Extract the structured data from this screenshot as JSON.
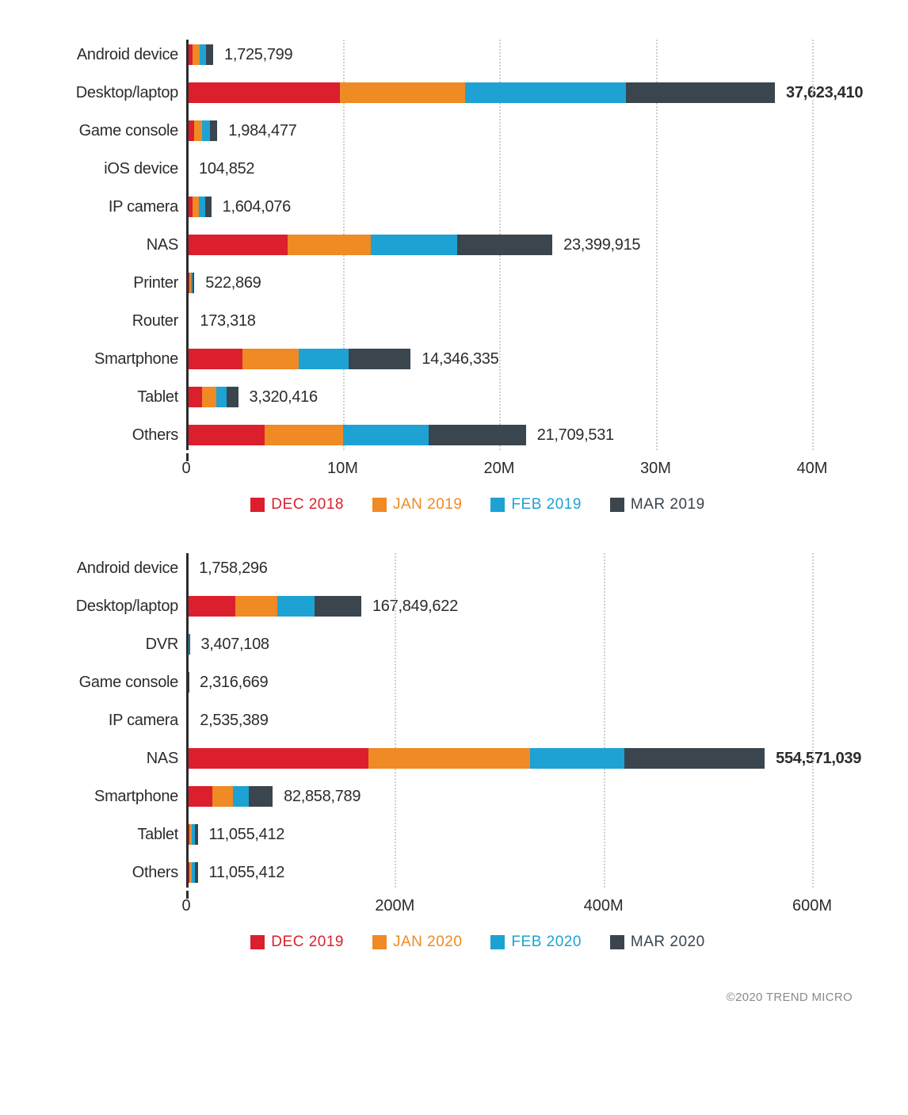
{
  "colors": {
    "dec": "#db1f2d",
    "jan": "#ef8a24",
    "feb": "#1da2d3",
    "mar": "#3a454e",
    "text": "#2c2c2c",
    "grid": "#cfcfcf",
    "footer": "#8a8a8a"
  },
  "chart1": {
    "type": "stacked-bar",
    "x_max": 40000000,
    "categories": [
      {
        "label": "Android device",
        "total": 1725799,
        "total_label": "1,725,799",
        "bold": false,
        "segments": [
          430000,
          430000,
          430000,
          435799
        ]
      },
      {
        "label": "Desktop/laptop",
        "total": 37623410,
        "total_label": "37,623,410",
        "bold": true,
        "segments": [
          9800000,
          8000000,
          10300000,
          9523410
        ]
      },
      {
        "label": "Game console",
        "total": 1984477,
        "total_label": "1,984,477",
        "bold": false,
        "segments": [
          500000,
          500000,
          500000,
          484477
        ]
      },
      {
        "label": "iOS device",
        "total": 104852,
        "total_label": "104,852",
        "bold": false,
        "segments": [
          10000,
          10000,
          70000,
          14852
        ]
      },
      {
        "label": "IP camera",
        "total": 1604076,
        "total_label": "1,604,076",
        "bold": false,
        "segments": [
          400000,
          400000,
          400000,
          404076
        ]
      },
      {
        "label": "NAS",
        "total": 23399915,
        "total_label": "23,399,915",
        "bold": false,
        "segments": [
          6500000,
          5300000,
          5500000,
          6099915
        ]
      },
      {
        "label": "Printer",
        "total": 522869,
        "total_label": "522,869",
        "bold": false,
        "segments": [
          200000,
          120000,
          100000,
          102869
        ]
      },
      {
        "label": "Router",
        "total": 173318,
        "total_label": "173,318",
        "bold": false,
        "segments": [
          40000,
          40000,
          40000,
          53318
        ]
      },
      {
        "label": "Smartphone",
        "total": 14346335,
        "total_label": "14,346,335",
        "bold": false,
        "segments": [
          3600000,
          3600000,
          3200000,
          3946335
        ]
      },
      {
        "label": "Tablet",
        "total": 3320416,
        "total_label": "3,320,416",
        "bold": false,
        "segments": [
          1000000,
          900000,
          700000,
          720416
        ]
      },
      {
        "label": "Others",
        "total": 21709531,
        "total_label": "21,709,531",
        "bold": false,
        "segments": [
          5000000,
          5000000,
          5500000,
          6209531
        ]
      }
    ],
    "ticks": [
      {
        "value": 0,
        "label": "0"
      },
      {
        "value": 10000000,
        "label": "10M"
      },
      {
        "value": 20000000,
        "label": "20M"
      },
      {
        "value": 30000000,
        "label": "30M"
      },
      {
        "value": 40000000,
        "label": "40M"
      }
    ],
    "legend": [
      {
        "label": "DEC 2018",
        "color_key": "dec"
      },
      {
        "label": "JAN 2019",
        "color_key": "jan"
      },
      {
        "label": "FEB 2019",
        "color_key": "feb"
      },
      {
        "label": "MAR 2019",
        "color_key": "mar"
      }
    ]
  },
  "chart2": {
    "type": "stacked-bar",
    "x_max": 600000000,
    "categories": [
      {
        "label": "Android device",
        "total": 1758296,
        "total_label": "1,758,296",
        "bold": false,
        "segments": [
          400000,
          400000,
          400000,
          558296
        ]
      },
      {
        "label": "Desktop/laptop",
        "total": 167849622,
        "total_label": "167,849,622",
        "bold": false,
        "segments": [
          47000000,
          40000000,
          36000000,
          44849622
        ]
      },
      {
        "label": "DVR",
        "total": 3407108,
        "total_label": "3,407,108",
        "bold": false,
        "segments": [
          300000,
          300000,
          2500000,
          307108
        ]
      },
      {
        "label": "Game console",
        "total": 2316669,
        "total_label": "2,316,669",
        "bold": false,
        "segments": [
          500000,
          1300000,
          300000,
          216669
        ]
      },
      {
        "label": "IP camera",
        "total": 2535389,
        "total_label": "2,535,389",
        "bold": false,
        "segments": [
          600000,
          600000,
          600000,
          735389
        ]
      },
      {
        "label": "NAS",
        "total": 554571039,
        "total_label": "554,571,039",
        "bold": true,
        "segments": [
          175000000,
          155000000,
          90000000,
          134571039
        ]
      },
      {
        "label": "Smartphone",
        "total": 82858789,
        "total_label": "82,858,789",
        "bold": false,
        "segments": [
          25000000,
          20000000,
          15000000,
          22858789
        ]
      },
      {
        "label": "Tablet",
        "total": 11055412,
        "total_label": "11,055,412",
        "bold": false,
        "segments": [
          2800000,
          2800000,
          2800000,
          2655412
        ]
      },
      {
        "label": "Others",
        "total": 11055412,
        "total_label": "11,055,412",
        "bold": false,
        "segments": [
          2800000,
          2800000,
          2800000,
          2655412
        ]
      }
    ],
    "ticks": [
      {
        "value": 0,
        "label": "0"
      },
      {
        "value": 200000000,
        "label": "200M"
      },
      {
        "value": 400000000,
        "label": "400M"
      },
      {
        "value": 600000000,
        "label": "600M"
      }
    ],
    "legend": [
      {
        "label": "DEC 2019",
        "color_key": "dec"
      },
      {
        "label": "JAN 2020",
        "color_key": "jan"
      },
      {
        "label": "FEB 2020",
        "color_key": "feb"
      },
      {
        "label": "MAR 2020",
        "color_key": "mar"
      }
    ]
  },
  "footer": "©2020 TREND MICRO"
}
